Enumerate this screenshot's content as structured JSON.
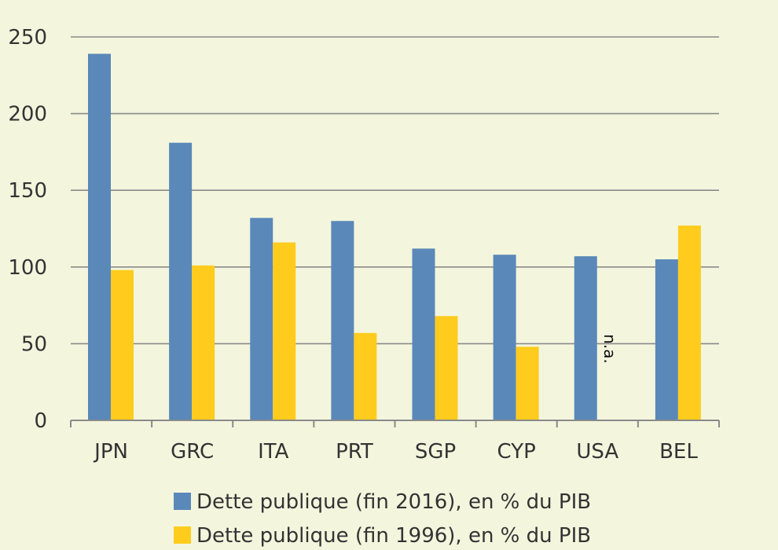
{
  "chart_data": {
    "type": "bar",
    "categories": [
      "JPN",
      "GRC",
      "ITA",
      "PRT",
      "SGP",
      "CYP",
      "USA",
      "BEL"
    ],
    "series": [
      {
        "name": "Dette publique (fin 2016), en % du PIB",
        "color": "#5a88b9",
        "values": [
          239,
          181,
          132,
          130,
          112,
          108,
          107,
          105
        ]
      },
      {
        "name": "Dette publique (fin 1996), en % du PIB",
        "color": "#ffcc1d",
        "values": [
          98,
          101,
          116,
          57,
          68,
          48,
          null,
          127
        ]
      }
    ],
    "yticks": [
      0,
      50,
      100,
      150,
      200,
      250
    ],
    "ylim": [
      0,
      250
    ],
    "grid": true,
    "legend_position": "bottom",
    "missing_label": "n.a.",
    "missing_label_category": "USA",
    "missing_label_series": 1
  }
}
